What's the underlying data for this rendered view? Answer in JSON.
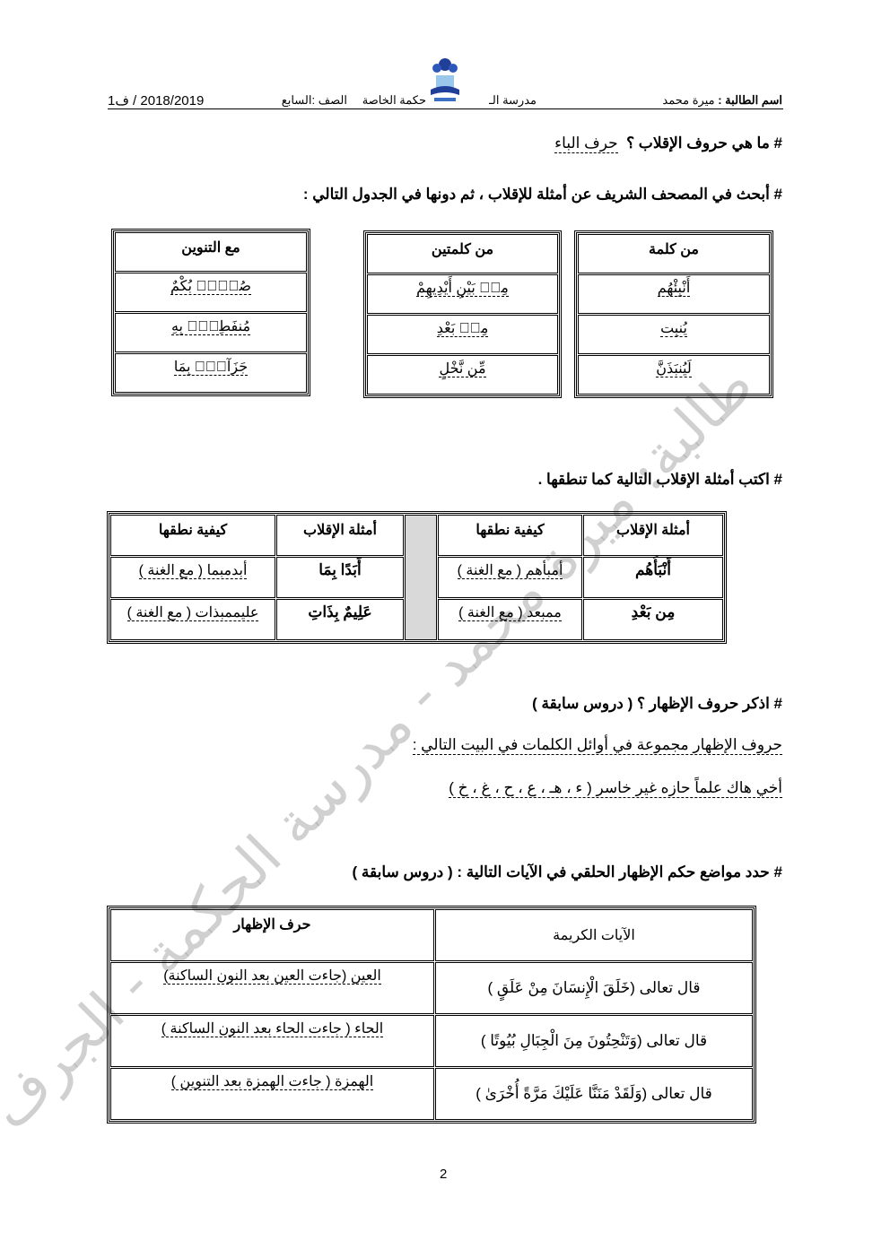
{
  "header": {
    "student_label": "اسم الطالبة :",
    "student_name": "ميرة محمد",
    "school": "مدرسة الـ",
    "school_suffix": "حكمة الخاصة",
    "grade_label": "الصف :",
    "grade": "السابع",
    "year_term": "2018/2019 / ف1"
  },
  "watermark": "طالبة: ميرة محمد - مدرسة الحكمة - الجرف",
  "q1": {
    "question": "# ما هي حروف الإقلاب ؟",
    "answer": "حرف الباء"
  },
  "q2": {
    "question": "# أبحث في المصحف الشريف عن أمثلة للإقلاب ، ثم دونها في الجدول التالي :",
    "tables": [
      {
        "header": "من كلمة",
        "rows": [
          "أَنْبِئْهُم",
          "يُنبِت",
          "لَيُنبَذَنَّ"
        ]
      },
      {
        "header": "من كلمتين",
        "rows": [
          "مِنۢ بَيْنِ أَيْدِيهِمْ",
          "مِنۢ بَعْدِ",
          "مِّن نَّخْلٍ"
        ]
      },
      {
        "header": "مع التنوين",
        "rows": [
          "صُمٌّۢ بُكْمٌ",
          "مُنفَطِرٌۢ بِهِ",
          "جَزَآءًۢ بِمَا"
        ]
      }
    ]
  },
  "q3": {
    "question": "# اكتب أمثلة الإقلاب التالية كما تنطقها .",
    "headers": [
      "أمثلة الإقلاب",
      "كيفية نطقها",
      "أمثلة الإقلاب",
      "كيفية نطقها"
    ],
    "rows": [
      [
        "أَنْبَأَهُم",
        "أمبأهم ( مع الغنة )",
        "أَبَدًا بِمَا",
        "أبدمبما ( مع الغنة )"
      ],
      [
        "مِن بَعْدِ",
        "ممبعد ( مع الغنة )",
        "عَلِيمٌ بِذَاتِ",
        "عليممبذات ( مع الغنة )"
      ]
    ]
  },
  "q4": {
    "question": "# اذكر حروف الإظهار ؟ ( دروس سابقة )",
    "line1": "حروف الإظهار مجموعة في أوائل الكلمات في البيت التالي :",
    "line2": "أخي هاك علماً حازه غير خاسر   ( ء ، هـ ، ع ، ح ، غ ، خ )"
  },
  "q5": {
    "question": "# حدد مواضع حكم الإظهار الحلقي في الآيات التالية :  ( دروس سابقة )",
    "headers": [
      "الآيات الكريمة",
      "حرف الإظهار"
    ],
    "rows": [
      [
        "قال تعالى (خَلَقَ الْإِنسَانَ مِنْ عَلَقٍ )",
        "العين (جاءت العين بعد النون الساكنة)"
      ],
      [
        "قال تعالى (وَتَنْحِتُونَ مِنَ الْجِبَالِ بُيُوتًا   )",
        "الحاء ( جاءت الحاء بعد النون الساكنة )"
      ],
      [
        "قال تعالى (وَلَقَدْ مَنَنَّا عَلَيْكَ مَرَّةً أُخْرَىٰ   )",
        "الهمزة ( جاءت الهمزة بعد التنوين )"
      ]
    ]
  },
  "page_number": "2"
}
